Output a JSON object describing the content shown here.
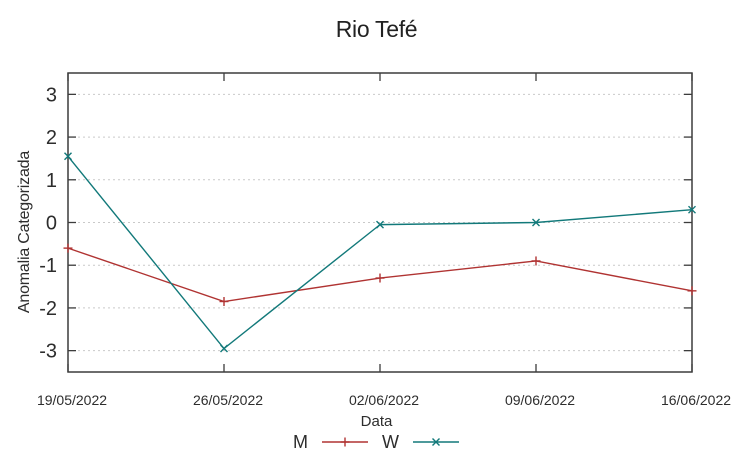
{
  "chart_data": {
    "type": "line",
    "title": "Rio Tefé",
    "xlabel": "Data",
    "ylabel": "Anomalia Categorizada",
    "categories": [
      "19/05/2022",
      "26/05/2022",
      "02/06/2022",
      "09/06/2022",
      "16/06/2022"
    ],
    "series": [
      {
        "name": "M",
        "marker": "plus",
        "color": "#b03332",
        "values": [
          -0.6,
          -1.85,
          -1.3,
          -0.9,
          -1.6
        ]
      },
      {
        "name": "W",
        "marker": "cross",
        "color": "#12797a",
        "values": [
          1.55,
          -2.95,
          -0.05,
          0.0,
          0.3
        ]
      }
    ],
    "yticks": [
      3,
      2,
      1,
      0,
      -1,
      -2,
      -3
    ],
    "ylim": [
      -3.5,
      3.5
    ],
    "grid": "horizontal dashed gridlines at integer y values",
    "legend_position": "bottom center, below x-axis label",
    "colors": {
      "grid": "#c9c9c9",
      "axis": "#3c3c3c",
      "text": "#2d2d2d",
      "background": "#ffffff"
    }
  }
}
